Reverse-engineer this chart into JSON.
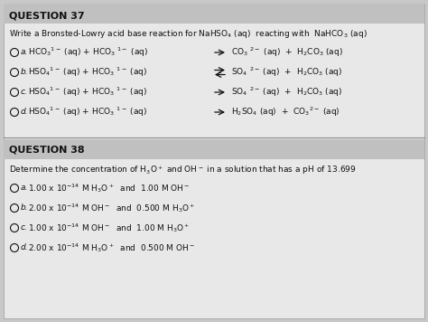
{
  "bg_color": "#c8c8c8",
  "content_bg": "#e8e8e8",
  "header_bg": "#c0c0c0",
  "text_color": "#111111",
  "divider_color": "#888888",
  "q37_header": "QUESTION 37",
  "q37_prompt": "Write a Bronsted-Lowry acid base reaction for NaHSO$_4$ (aq)  reacting with  NaHCO$_3$ (aq)",
  "q37_options": [
    {
      "label": "a.",
      "lhs": "$^{}$HCO$_3$$^{1-}$ (aq) + HCO$_3$ $^{1-}$ (aq)",
      "arrow": "right",
      "rhs": "CO$_3$ $^{2-}$ (aq)  +  H$_2$CO$_3$ (aq)"
    },
    {
      "label": "b.",
      "lhs": "HSO$_4$$^{1-}$ (aq) + HCO$_3$ $^{1-}$ (aq)",
      "arrow": "double",
      "rhs": "SO$_4$ $^{2-}$ (aq)  +  H$_2$CO$_3$ (aq)"
    },
    {
      "label": "c.",
      "lhs": "HSO$_4$$^{1-}$ (aq) + HCO$_3$ $^{1-}$ (aq)",
      "arrow": "right",
      "rhs": "SO$_4$ $^{2-}$ (aq)  +  H$_2$CO$_3$ (aq)"
    },
    {
      "label": "d.",
      "lhs": "HSO$_4$$^{1-}$ (aq) + HCO$_3$ $^{1-}$ (aq)",
      "arrow": "right",
      "rhs": "H$_2$SO$_4$ (aq)  +  CO$_3$$^{2-}$ (aq)"
    }
  ],
  "q38_header": "QUESTION 38",
  "q38_prompt": "Determine the concentration of H$_3$O$^+$ and OH$^-$ in a solution that has a pH of 13.699",
  "q38_options": [
    {
      "label": "a.",
      "text": "1.00 x 10$^{-14}$ M H$_3$O$^+$  and  1.00 M OH$^-$"
    },
    {
      "label": "b.",
      "text": "2.00 x 10$^{-14}$ M OH$^-$  and  0.500 M H$_3$O$^+$"
    },
    {
      "label": "c.",
      "text": "1.00 x 10$^{-14}$ M OH$^-$  and  1.00 M H$_3$O$^+$"
    },
    {
      "label": "d.",
      "text": "2.00 x 10$^{-14}$ M H$_3$O$^+$  and  0.500 M OH$^-$"
    }
  ],
  "figwidth": 4.74,
  "figheight": 3.56,
  "dpi": 100
}
